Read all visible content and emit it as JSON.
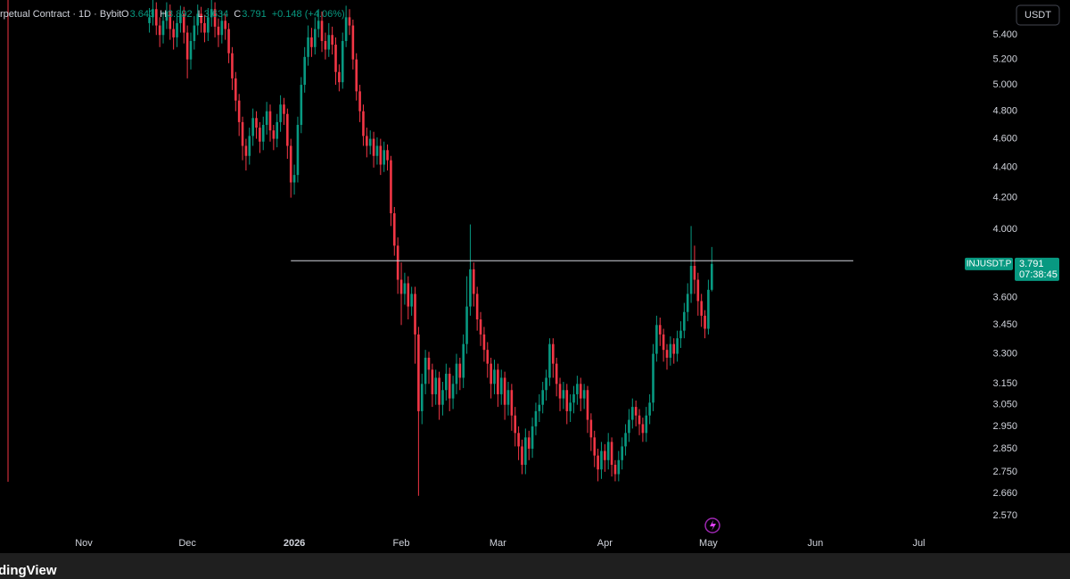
{
  "chart_data": {
    "type": "candlestick",
    "title": "rpetual Contract · 1D · Bybit",
    "ohlc_legend": [
      {
        "label": "O",
        "value": "3.643"
      },
      {
        "label": "H",
        "value": "3.892"
      },
      {
        "label": "L",
        "value": "3.634"
      },
      {
        "label": "C",
        "value": "3.791"
      }
    ],
    "change": "+0.148 (+4.06%)",
    "currency": "USDT",
    "symbol": "INJUSDT.P",
    "last_price": "3.791",
    "countdown": "07:38:45",
    "up_color": "#089981",
    "down_color": "#f23645",
    "log_scale": true,
    "ylim": [
      2.5,
      5.7
    ],
    "yticks": [
      {
        "value": 5.4,
        "label": "5.400"
      },
      {
        "value": 5.2,
        "label": "5.200"
      },
      {
        "value": 5.0,
        "label": "5.000"
      },
      {
        "value": 4.8,
        "label": "4.800"
      },
      {
        "value": 4.6,
        "label": "4.600"
      },
      {
        "value": 4.4,
        "label": "4.400"
      },
      {
        "value": 4.2,
        "label": "4.200"
      },
      {
        "value": 4.0,
        "label": "4.000"
      },
      {
        "value": 3.6,
        "label": "3.600"
      },
      {
        "value": 3.45,
        "label": "3.450"
      },
      {
        "value": 3.3,
        "label": "3.300"
      },
      {
        "value": 3.15,
        "label": "3.150"
      },
      {
        "value": 3.05,
        "label": "3.050"
      },
      {
        "value": 2.95,
        "label": "2.950"
      },
      {
        "value": 2.85,
        "label": "2.850"
      },
      {
        "value": 2.75,
        "label": "2.750"
      },
      {
        "value": 2.66,
        "label": "2.660"
      },
      {
        "value": 2.57,
        "label": "2.570"
      }
    ],
    "xlim": [
      -43.3,
      235.8
    ],
    "xticks": [
      {
        "value": -19,
        "label": "Nov"
      },
      {
        "value": 11,
        "label": "Dec"
      },
      {
        "value": 42,
        "label": "2026"
      },
      {
        "value": 73,
        "label": "Feb"
      },
      {
        "value": 101,
        "label": "Mar"
      },
      {
        "value": 132,
        "label": "Apr"
      },
      {
        "value": 162,
        "label": "May"
      },
      {
        "value": 193,
        "label": "Jun"
      },
      {
        "value": 223,
        "label": "Jul"
      }
    ],
    "hline": {
      "value": 3.81,
      "from": 41,
      "to": 204,
      "color": "#d1d4dc"
    },
    "open": [
      5.5,
      5.55,
      5.62,
      5.48,
      5.4,
      5.52,
      5.6,
      5.45,
      5.38,
      5.5,
      5.58,
      5.42,
      5.2,
      5.35,
      5.48,
      5.58,
      5.5,
      5.42,
      5.55,
      5.62,
      5.47,
      5.4,
      5.52,
      5.45,
      5.25,
      5.05,
      4.88,
      4.72,
      4.55,
      4.48,
      4.62,
      4.75,
      4.68,
      4.58,
      4.7,
      4.8,
      4.66,
      4.6,
      4.72,
      4.85,
      4.78,
      4.55,
      4.3,
      4.35,
      4.7,
      5.0,
      5.22,
      5.38,
      5.3,
      5.45,
      5.52,
      5.35,
      5.28,
      5.4,
      5.32,
      5.1,
      5.02,
      5.35,
      5.55,
      5.48,
      5.2,
      4.95,
      4.8,
      4.62,
      4.55,
      4.6,
      4.48,
      4.55,
      4.42,
      4.52,
      4.45,
      4.1,
      3.9,
      3.7,
      3.62,
      3.68,
      3.55,
      3.62,
      3.4,
      3.02,
      3.15,
      3.28,
      3.22,
      3.1,
      3.18,
      3.05,
      3.12,
      3.2,
      3.08,
      3.15,
      3.25,
      3.18,
      3.35,
      3.55,
      3.76,
      3.62,
      3.48,
      3.4,
      3.32,
      3.25,
      3.15,
      3.22,
      3.1,
      3.18,
      3.05,
      3.12,
      3.0,
      2.92,
      2.86,
      2.78,
      2.9,
      2.85,
      2.95,
      3.02,
      3.05,
      3.12,
      3.18,
      3.35,
      3.25,
      3.15,
      3.08,
      3.12,
      3.02,
      3.06,
      3.1,
      3.15,
      3.08,
      3.12,
      2.98,
      2.9,
      2.82,
      2.76,
      2.84,
      2.8,
      2.88,
      2.78,
      2.74,
      2.8,
      2.86,
      2.92,
      2.98,
      3.04,
      3.0,
      2.96,
      2.92,
      3.0,
      3.06,
      3.3,
      3.45,
      3.4,
      3.32,
      3.28,
      3.35,
      3.3,
      3.38,
      3.42,
      3.52,
      3.62,
      3.78,
      3.7,
      3.58,
      3.5,
      3.43,
      3.643
    ],
    "high": [
      5.63,
      5.7,
      5.68,
      5.55,
      5.6,
      5.68,
      5.66,
      5.52,
      5.58,
      5.65,
      5.64,
      5.48,
      5.42,
      5.56,
      5.66,
      5.64,
      5.57,
      5.63,
      5.7,
      5.68,
      5.54,
      5.6,
      5.58,
      5.5,
      5.3,
      5.1,
      4.93,
      4.76,
      4.6,
      4.68,
      4.82,
      4.8,
      4.72,
      4.76,
      4.87,
      4.85,
      4.7,
      4.78,
      4.92,
      4.9,
      4.82,
      4.6,
      4.42,
      4.76,
      5.06,
      5.3,
      5.48,
      5.46,
      5.55,
      5.62,
      5.6,
      5.42,
      5.5,
      5.47,
      5.38,
      5.16,
      5.42,
      5.65,
      5.62,
      5.53,
      5.25,
      5.0,
      4.85,
      4.68,
      4.66,
      4.65,
      4.61,
      4.6,
      4.58,
      4.56,
      4.48,
      4.14,
      3.95,
      3.8,
      3.74,
      3.72,
      3.66,
      3.66,
      3.44,
      3.2,
      3.32,
      3.31,
      3.25,
      3.22,
      3.21,
      3.16,
      3.25,
      3.23,
      3.19,
      3.3,
      3.28,
      3.4,
      3.72,
      4.03,
      3.8,
      3.66,
      3.52,
      3.44,
      3.36,
      3.28,
      3.27,
      3.25,
      3.22,
      3.21,
      3.16,
      3.15,
      3.04,
      2.95,
      2.89,
      2.94,
      2.93,
      2.99,
      3.06,
      3.1,
      3.16,
      3.22,
      3.38,
      3.38,
      3.28,
      3.18,
      3.16,
      3.15,
      3.1,
      3.14,
      3.19,
      3.18,
      3.15,
      3.14,
      3.01,
      2.93,
      2.85,
      2.88,
      2.87,
      2.92,
      2.9,
      2.8,
      2.84,
      2.9,
      2.96,
      3.03,
      3.08,
      3.07,
      3.03,
      2.99,
      3.04,
      3.1,
      3.35,
      3.5,
      3.49,
      3.43,
      3.35,
      3.39,
      3.38,
      3.42,
      3.47,
      3.57,
      3.68,
      4.02,
      3.9,
      3.74,
      3.62,
      3.53,
      3.7,
      3.892
    ],
    "low": [
      5.42,
      5.48,
      5.4,
      5.3,
      5.33,
      5.45,
      5.36,
      5.28,
      5.3,
      5.42,
      5.33,
      5.05,
      5.12,
      5.28,
      5.4,
      5.42,
      5.34,
      5.35,
      5.47,
      5.38,
      5.3,
      5.33,
      5.36,
      5.17,
      4.96,
      4.8,
      4.62,
      4.45,
      4.38,
      4.42,
      4.55,
      4.6,
      4.5,
      4.52,
      4.63,
      4.58,
      4.52,
      4.54,
      4.65,
      4.7,
      4.46,
      4.2,
      4.22,
      4.3,
      4.64,
      4.94,
      5.15,
      5.22,
      5.24,
      5.38,
      5.26,
      5.2,
      5.22,
      5.24,
      5.0,
      4.95,
      4.97,
      5.3,
      5.4,
      5.12,
      4.88,
      4.72,
      4.55,
      4.47,
      4.49,
      4.4,
      4.42,
      4.35,
      4.37,
      4.38,
      4.02,
      3.84,
      3.62,
      3.45,
      3.56,
      3.48,
      3.5,
      3.25,
      2.65,
      2.96,
      3.1,
      3.15,
      3.04,
      3.05,
      2.98,
      3.0,
      3.07,
      3.02,
      3.03,
      3.1,
      3.12,
      3.13,
      3.3,
      3.5,
      3.55,
      3.42,
      3.34,
      3.26,
      3.18,
      3.08,
      3.1,
      3.04,
      3.05,
      2.98,
      3.0,
      2.93,
      2.86,
      2.8,
      2.74,
      2.74,
      2.8,
      2.81,
      2.91,
      2.97,
      3.01,
      3.07,
      3.14,
      3.18,
      3.09,
      3.02,
      3.03,
      2.96,
      2.97,
      3.01,
      3.05,
      3.02,
      3.03,
      2.92,
      2.84,
      2.77,
      2.71,
      2.72,
      2.75,
      2.76,
      2.73,
      2.71,
      2.71,
      2.76,
      2.82,
      2.88,
      2.94,
      2.95,
      2.91,
      2.88,
      2.88,
      2.96,
      3.02,
      3.26,
      3.34,
      3.26,
      3.22,
      3.24,
      3.25,
      3.26,
      3.33,
      3.38,
      3.47,
      3.57,
      3.62,
      3.5,
      3.44,
      3.38,
      3.4,
      3.634
    ],
    "close": [
      5.55,
      5.62,
      5.48,
      5.4,
      5.52,
      5.6,
      5.45,
      5.38,
      5.5,
      5.58,
      5.42,
      5.2,
      5.35,
      5.48,
      5.58,
      5.5,
      5.42,
      5.55,
      5.62,
      5.47,
      5.4,
      5.52,
      5.45,
      5.25,
      5.05,
      4.88,
      4.72,
      4.55,
      4.48,
      4.62,
      4.75,
      4.68,
      4.58,
      4.7,
      4.8,
      4.66,
      4.6,
      4.72,
      4.85,
      4.78,
      4.55,
      4.3,
      4.35,
      4.7,
      5.0,
      5.22,
      5.38,
      5.3,
      5.45,
      5.52,
      5.35,
      5.28,
      5.4,
      5.32,
      5.1,
      5.02,
      5.35,
      5.55,
      5.48,
      5.2,
      4.95,
      4.8,
      4.62,
      4.55,
      4.6,
      4.48,
      4.55,
      4.42,
      4.52,
      4.45,
      4.1,
      3.9,
      3.7,
      3.62,
      3.68,
      3.55,
      3.62,
      3.4,
      3.02,
      3.15,
      3.28,
      3.22,
      3.1,
      3.18,
      3.05,
      3.12,
      3.2,
      3.08,
      3.15,
      3.25,
      3.18,
      3.35,
      3.55,
      3.76,
      3.62,
      3.48,
      3.4,
      3.32,
      3.25,
      3.15,
      3.22,
      3.1,
      3.18,
      3.05,
      3.12,
      3.0,
      2.92,
      2.86,
      2.78,
      2.9,
      2.85,
      2.95,
      3.02,
      3.05,
      3.12,
      3.18,
      3.35,
      3.25,
      3.15,
      3.08,
      3.12,
      3.02,
      3.06,
      3.1,
      3.15,
      3.08,
      3.12,
      2.98,
      2.9,
      2.82,
      2.76,
      2.84,
      2.8,
      2.88,
      2.78,
      2.74,
      2.8,
      2.86,
      2.92,
      2.98,
      3.04,
      3.0,
      2.96,
      2.92,
      3.0,
      3.06,
      3.3,
      3.45,
      3.4,
      3.32,
      3.28,
      3.35,
      3.3,
      3.38,
      3.42,
      3.52,
      3.62,
      3.78,
      3.7,
      3.58,
      3.5,
      3.43,
      3.643,
      3.791
    ]
  },
  "footer": {
    "brand": "dingView"
  }
}
